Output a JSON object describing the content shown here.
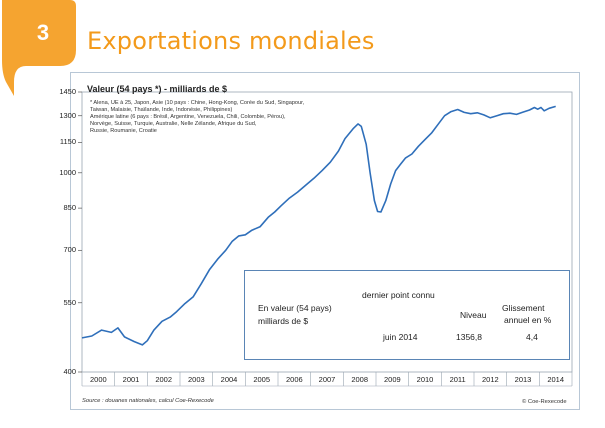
{
  "badge": {
    "number": "3"
  },
  "title": "Exportations mondiales",
  "chart_data": {
    "type": "line",
    "title": "Valeur (54 pays *) - milliards de $",
    "notes": [
      "* Alena, UE à 25, Japon, Asie (10 pays : Chine, Hong-Kong, Corée du Sud, Singapour,",
      "Taiwan, Malaisie, Thaïlande, Inde, Indonésie, Philippines)",
      "Amérique latine (6 pays : Brésil, Argentine, Venezuela, Chili, Colombie, Pérou),",
      "Norvège, Suisse, Turquie, Australie, Nelle Zélande, Afrique du Sud,",
      "Russie, Roumanie, Croatie"
    ],
    "y_ticks": [
      "400",
      "550",
      "700",
      "850",
      "1000",
      "1150",
      "1300",
      "1450"
    ],
    "y_scale": "log",
    "ylim": [
      400,
      1450
    ],
    "x_categories": [
      "2000",
      "2001",
      "2002",
      "2003",
      "2004",
      "2005",
      "2006",
      "2007",
      "2008",
      "2009",
      "2010",
      "2011",
      "2012",
      "2013",
      "2014"
    ],
    "series": [
      {
        "name": "",
        "color": "#2f6fba",
        "points": [
          [
            2000.0,
            468
          ],
          [
            2000.3,
            472
          ],
          [
            2000.6,
            485
          ],
          [
            2000.9,
            480
          ],
          [
            2001.1,
            490
          ],
          [
            2001.3,
            470
          ],
          [
            2001.6,
            460
          ],
          [
            2001.85,
            453
          ],
          [
            2002.0,
            462
          ],
          [
            2002.2,
            485
          ],
          [
            2002.45,
            505
          ],
          [
            2002.7,
            515
          ],
          [
            2002.9,
            528
          ],
          [
            2003.15,
            548
          ],
          [
            2003.4,
            565
          ],
          [
            2003.65,
            600
          ],
          [
            2003.9,
            640
          ],
          [
            2004.15,
            672
          ],
          [
            2004.4,
            700
          ],
          [
            2004.6,
            730
          ],
          [
            2004.8,
            748
          ],
          [
            2005.0,
            752
          ],
          [
            2005.2,
            768
          ],
          [
            2005.45,
            780
          ],
          [
            2005.7,
            815
          ],
          [
            2005.9,
            835
          ],
          [
            2006.1,
            860
          ],
          [
            2006.35,
            890
          ],
          [
            2006.6,
            915
          ],
          [
            2006.85,
            945
          ],
          [
            2007.1,
            975
          ],
          [
            2007.35,
            1010
          ],
          [
            2007.6,
            1050
          ],
          [
            2007.85,
            1105
          ],
          [
            2008.05,
            1170
          ],
          [
            2008.3,
            1225
          ],
          [
            2008.45,
            1252
          ],
          [
            2008.55,
            1238
          ],
          [
            2008.7,
            1140
          ],
          [
            2008.82,
            1000
          ],
          [
            2008.95,
            880
          ],
          [
            2009.05,
            837
          ],
          [
            2009.15,
            835
          ],
          [
            2009.3,
            880
          ],
          [
            2009.45,
            950
          ],
          [
            2009.6,
            1010
          ],
          [
            2009.75,
            1040
          ],
          [
            2009.9,
            1070
          ],
          [
            2010.1,
            1090
          ],
          [
            2010.3,
            1130
          ],
          [
            2010.5,
            1165
          ],
          [
            2010.7,
            1200
          ],
          [
            2010.9,
            1250
          ],
          [
            2011.1,
            1300
          ],
          [
            2011.3,
            1325
          ],
          [
            2011.5,
            1338
          ],
          [
            2011.7,
            1320
          ],
          [
            2011.9,
            1312
          ],
          [
            2012.1,
            1318
          ],
          [
            2012.3,
            1305
          ],
          [
            2012.5,
            1288
          ],
          [
            2012.7,
            1300
          ],
          [
            2012.9,
            1312
          ],
          [
            2013.1,
            1315
          ],
          [
            2013.3,
            1308
          ],
          [
            2013.5,
            1322
          ],
          [
            2013.7,
            1335
          ],
          [
            2013.85,
            1350
          ],
          [
            2013.95,
            1340
          ],
          [
            2014.05,
            1350
          ],
          [
            2014.15,
            1330
          ],
          [
            2014.3,
            1345
          ],
          [
            2014.5,
            1357
          ]
        ]
      }
    ]
  },
  "info_box": {
    "header": "dernier point connu",
    "label_line1": "En valeur (54 pays)",
    "label_line2": "milliards de $",
    "col_niveau": "Niveau",
    "col_gliss_1": "Glissement",
    "col_gliss_2": "annuel en %",
    "date": "juin 2014",
    "niveau": "1356,8",
    "glissement": "4,4"
  },
  "footer": {
    "source": "Source : douanes nationales, calcul Coe-Rexecode",
    "credit": "© Coe-Rexecode"
  },
  "colors": {
    "accent_orange": "#f39a1b",
    "badge_orange": "#f5a430",
    "line_blue": "#2f6fba",
    "box_border": "#5a85b5"
  }
}
